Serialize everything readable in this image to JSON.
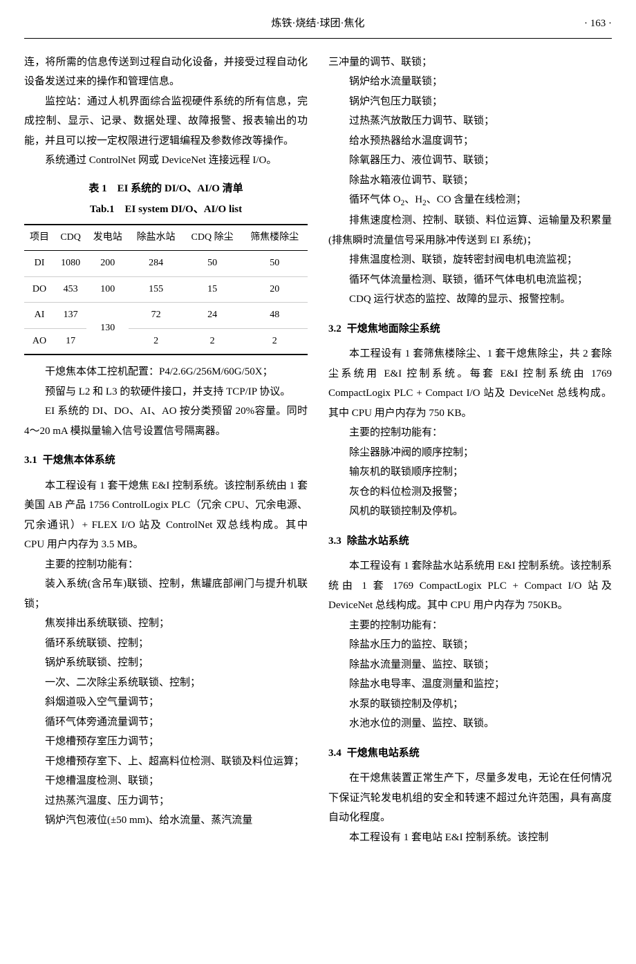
{
  "header": {
    "title": "炼铁·烧结·球团·焦化",
    "page": "· 163 ·"
  },
  "left": {
    "p1": "连，将所需的信息传送到过程自动化设备，并接受过程自动化设备发送过来的操作和管理信息。",
    "p2": "监控站：通过人机界面综合监视硬件系统的所有信息，完成控制、显示、记录、数据处理、故障报警、报表输出的功能，并且可以按一定权限进行逻辑编程及参数修改等操作。",
    "p3": "系统通过 ControlNet 网或 DeviceNet 连接远程 I/O。",
    "table": {
      "caption_zh": "表 1　EI 系统的 DI/O、AI/O 清单",
      "caption_en": "Tab.1　EI system DI/O、AI/O list",
      "headers": [
        "项目",
        "CDQ",
        "发电站",
        "除盐水站",
        "CDQ 除尘",
        "筛焦楼除尘"
      ],
      "rows": [
        [
          "DI",
          "1080",
          "200",
          "284",
          "50",
          "50"
        ],
        [
          "DO",
          "453",
          "100",
          "155",
          "15",
          "20"
        ],
        [
          "AI",
          "137",
          "130",
          "72",
          "24",
          "48"
        ],
        [
          "AO",
          "17",
          "",
          "2",
          "2",
          "2"
        ]
      ]
    },
    "p4": "干熄焦本体工控机配置：P4/2.6G/256M/60G/50X；",
    "p5": "预留与 L2 和 L3 的软硬件接口，并支持 TCP/IP 协议。",
    "p6": "EI 系统的 DI、DO、AI、AO 按分类预留 20%容量。同时 4～20 mA 模拟量输入信号设置信号隔离器。",
    "s31_num": "3.1",
    "s31_title": "干熄焦本体系统",
    "p7": "本工程设有 1 套干熄焦 E&I 控制系统。该控制系统由 1 套美国 AB 产品 1756 ControlLogix PLC（冗余 CPU、冗余电源、冗余通讯）+ FLEX I/O 站及 ControlNet 双总线构成。其中 CPU 用户内存为 3.5 MB。",
    "p8": "主要的控制功能有：",
    "p9": "装入系统(含吊车)联锁、控制，焦罐底部闸门与提升机联锁；",
    "p10": "焦炭排出系统联锁、控制；",
    "p11": "循环系统联锁、控制；",
    "p12": "锅炉系统联锁、控制；",
    "p13": "一次、二次除尘系统联锁、控制；",
    "p14": "斜烟道吸入空气量调节；",
    "p15": "循环气体旁通流量调节；",
    "p16": "干熄槽预存室压力调节；",
    "p17": "干熄槽预存室下、上、超高料位检测、联锁及料位运算；",
    "p18": "干熄槽温度检测、联锁；",
    "p19": "过热蒸汽温度、压力调节；",
    "p20": "锅炉汽包液位(±50 mm)、给水流量、蒸汽流量"
  },
  "right": {
    "p1": "三冲量的调节、联锁；",
    "p2": "锅炉给水流量联锁；",
    "p3": "锅炉汽包压力联锁；",
    "p4": "过热蒸汽放散压力调节、联锁；",
    "p5": "给水预热器给水温度调节；",
    "p6": "除氧器压力、液位调节、联锁；",
    "p7": "除盐水箱液位调节、联锁；",
    "p8a": "循环气体 O",
    "p8b": "、H",
    "p8c": "、CO 含量在线检测；",
    "p9": "排焦速度检测、控制、联锁、料位运算、运输量及积累量(排焦瞬时流量信号采用脉冲传送到 EI 系统)；",
    "p10": "排焦温度检测、联锁，旋转密封阀电机电流监视；",
    "p11": "循环气体流量检测、联锁，循环气体电机电流监视；",
    "p12": "CDQ 运行状态的监控、故障的显示、报警控制。",
    "s32_num": "3.2",
    "s32_title": "干熄焦地面除尘系统",
    "p13": "本工程设有 1 套筛焦楼除尘、1 套干熄焦除尘，共 2 套除尘系统用 E&I 控制系统。每套 E&I 控制系统由 1769 CompactLogix PLC + Compact I/O 站及 DeviceNet 总线构成。其中 CPU 用户内存为 750 KB。",
    "p14": "主要的控制功能有：",
    "p15": "除尘器脉冲阀的顺序控制；",
    "p16": "输灰机的联锁顺序控制；",
    "p17": "灰仓的料位检测及报警；",
    "p18": "风机的联锁控制及停机。",
    "s33_num": "3.3",
    "s33_title": "除盐水站系统",
    "p19": "本工程设有 1 套除盐水站系统用 E&I 控制系统。该控制系统由 1 套 1769 CompactLogix PLC + Compact I/O 站及 DeviceNet 总线构成。其中 CPU 用户内存为 750KB。",
    "p20": "主要的控制功能有：",
    "p21": "除盐水压力的监控、联锁；",
    "p22": "除盐水流量测量、监控、联锁；",
    "p23": "除盐水电导率、温度测量和监控；",
    "p24": "水泵的联锁控制及停机；",
    "p25": "水池水位的测量、监控、联锁。",
    "s34_num": "3.4",
    "s34_title": "干熄焦电站系统",
    "p26": "在干熄焦装置正常生产下，尽量多发电，无论在任何情况下保证汽轮发电机组的安全和转速不超过允许范围，具有高度自动化程度。",
    "p27": "本工程设有 1 套电站 E&I 控制系统。该控制"
  }
}
